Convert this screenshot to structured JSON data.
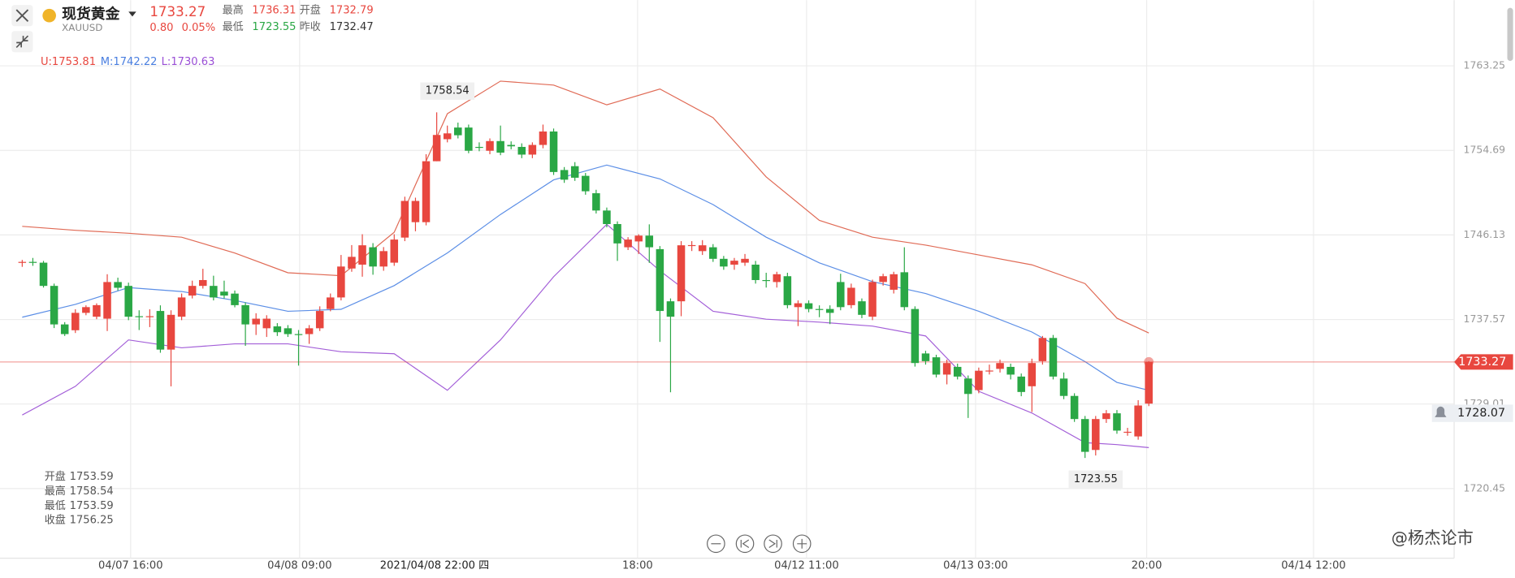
{
  "header": {
    "name": "现货黄金",
    "symbol": "XAUUSD",
    "price": 1733.27,
    "change": "0.80",
    "change_pct": "0.05%",
    "stats": [
      {
        "label": "最高",
        "value": 1736.31
      },
      {
        "label": "开盘",
        "value": 1732.79
      },
      {
        "label": "最低",
        "value": 1723.55
      },
      {
        "label": "昨收",
        "value": 1732.47
      }
    ]
  },
  "legend": [
    "U:1753.81",
    "M:1742.22",
    "L:1730.63"
  ],
  "info": [
    {
      "label": "开盘",
      "value": 1753.59
    },
    {
      "label": "最高",
      "value": 1758.54
    },
    {
      "label": "最低",
      "value": 1753.59
    },
    {
      "label": "收盘",
      "value": 1756.25
    }
  ],
  "watermark": "@杨杰论市",
  "chart_data": {
    "type": "candlestick",
    "up_color": "#e8473f",
    "down_color": "#2aa745",
    "ylim": [
      1713.4,
      1769.9
    ],
    "yticks": [
      1720.45,
      1729.01,
      1737.57,
      1746.13,
      1754.69,
      1763.25
    ],
    "xticks": [
      {
        "value": 10.2,
        "label": "04/07 16:00"
      },
      {
        "value": 26.1,
        "label": "04/08 09:00"
      },
      {
        "value": 57.9,
        "label": "18:00"
      },
      {
        "value": 73.8,
        "label": "04/12 11:00"
      },
      {
        "value": 89.7,
        "label": "04/13 03:00"
      },
      {
        "value": 105.8,
        "label": "20:00"
      },
      {
        "value": 121.5,
        "label": "04/14 12:00"
      }
    ],
    "crosshair": {
      "value": 38.8,
      "label": "2021/04/08 22:00 四"
    },
    "current_price": {
      "value": 1733.27,
      "color": "#e8473f"
    },
    "alert_price": 1728.07,
    "high_label": {
      "index": 40,
      "value": 1758.54
    },
    "low_label": {
      "index": 101,
      "value": 1723.55
    },
    "ohlc": [
      [
        1743.3,
        1743.6,
        1742.9,
        1743.4
      ],
      [
        1743.4,
        1743.8,
        1743.0,
        1743.3
      ],
      [
        1743.32,
        1743.5,
        1740.8,
        1740.97
      ],
      [
        1740.97,
        1741.2,
        1736.7,
        1737.07
      ],
      [
        1737.07,
        1737.3,
        1735.9,
        1736.09
      ],
      [
        1736.48,
        1738.6,
        1736.2,
        1738.24
      ],
      [
        1738.24,
        1739.0,
        1738.0,
        1738.82
      ],
      [
        1737.85,
        1739.2,
        1737.6,
        1739.02
      ],
      [
        1737.65,
        1742.15,
        1736.4,
        1741.36
      ],
      [
        1741.36,
        1741.8,
        1740.5,
        1740.78
      ],
      [
        1740.97,
        1741.3,
        1737.5,
        1737.85
      ],
      [
        1737.9,
        1738.5,
        1736.5,
        1737.85
      ],
      [
        1737.85,
        1738.6,
        1736.8,
        1737.9
      ],
      [
        1738.43,
        1739.0,
        1734.2,
        1734.52
      ],
      [
        1734.52,
        1738.5,
        1730.8,
        1738.04
      ],
      [
        1737.85,
        1740.2,
        1737.5,
        1739.8
      ],
      [
        1739.99,
        1741.5,
        1739.7,
        1740.97
      ],
      [
        1740.97,
        1742.7,
        1740.7,
        1741.56
      ],
      [
        1740.97,
        1742.0,
        1739.5,
        1739.8
      ],
      [
        1740.39,
        1741.5,
        1739.7,
        1739.99
      ],
      [
        1740.19,
        1740.5,
        1738.8,
        1739.02
      ],
      [
        1739.02,
        1739.3,
        1734.9,
        1737.07
      ],
      [
        1737.07,
        1738.2,
        1736.0,
        1737.65
      ],
      [
        1736.68,
        1738.0,
        1735.8,
        1737.65
      ],
      [
        1736.87,
        1737.2,
        1735.9,
        1736.28
      ],
      [
        1736.68,
        1737.0,
        1735.8,
        1736.09
      ],
      [
        1736.09,
        1736.5,
        1732.9,
        1736.0
      ],
      [
        1736.09,
        1737.0,
        1735.1,
        1736.68
      ],
      [
        1736.68,
        1738.9,
        1736.4,
        1738.43
      ],
      [
        1738.63,
        1740.2,
        1738.4,
        1739.8
      ],
      [
        1739.8,
        1744.1,
        1739.5,
        1742.93
      ],
      [
        1742.73,
        1745.1,
        1742.4,
        1743.91
      ],
      [
        1743.12,
        1746.2,
        1741.9,
        1745.08
      ],
      [
        1744.88,
        1745.3,
        1742.1,
        1742.93
      ],
      [
        1742.93,
        1744.9,
        1742.5,
        1744.49
      ],
      [
        1743.32,
        1746.2,
        1743.0,
        1745.66
      ],
      [
        1745.86,
        1750.0,
        1745.5,
        1749.57
      ],
      [
        1747.42,
        1749.9,
        1746.5,
        1749.57
      ],
      [
        1747.42,
        1754.3,
        1747.1,
        1753.59
      ],
      [
        1753.59,
        1758.54,
        1753.59,
        1756.25
      ],
      [
        1755.82,
        1757.2,
        1755.5,
        1756.41
      ],
      [
        1757.0,
        1757.5,
        1755.9,
        1756.22
      ],
      [
        1757.0,
        1757.3,
        1754.4,
        1754.65
      ],
      [
        1755.04,
        1755.5,
        1754.6,
        1755.0
      ],
      [
        1754.65,
        1755.9,
        1754.3,
        1755.63
      ],
      [
        1755.63,
        1757.2,
        1754.2,
        1754.46
      ],
      [
        1755.24,
        1755.6,
        1754.8,
        1755.1
      ],
      [
        1755.04,
        1755.4,
        1753.9,
        1754.26
      ],
      [
        1754.26,
        1755.5,
        1753.9,
        1755.24
      ],
      [
        1755.24,
        1757.3,
        1754.9,
        1756.6
      ],
      [
        1756.6,
        1756.9,
        1752.2,
        1752.5
      ],
      [
        1752.7,
        1753.0,
        1751.4,
        1751.72
      ],
      [
        1753.09,
        1753.5,
        1751.6,
        1751.92
      ],
      [
        1752.11,
        1752.4,
        1750.2,
        1750.55
      ],
      [
        1750.35,
        1750.7,
        1748.3,
        1748.6
      ],
      [
        1748.6,
        1748.9,
        1746.9,
        1747.23
      ],
      [
        1747.23,
        1747.5,
        1743.5,
        1745.27
      ],
      [
        1744.88,
        1745.9,
        1744.6,
        1745.66
      ],
      [
        1745.47,
        1746.2,
        1744.2,
        1746.06
      ],
      [
        1746.06,
        1747.2,
        1743.3,
        1744.88
      ],
      [
        1744.69,
        1745.0,
        1735.3,
        1738.43
      ],
      [
        1739.41,
        1739.7,
        1730.2,
        1737.85
      ],
      [
        1739.41,
        1745.5,
        1737.9,
        1745.08
      ],
      [
        1745.08,
        1745.5,
        1744.5,
        1745.1
      ],
      [
        1744.49,
        1745.6,
        1744.1,
        1745.08
      ],
      [
        1744.88,
        1745.2,
        1743.4,
        1743.71
      ],
      [
        1743.71,
        1744.0,
        1742.6,
        1742.93
      ],
      [
        1743.12,
        1743.8,
        1742.6,
        1743.52
      ],
      [
        1743.32,
        1744.2,
        1743.0,
        1743.71
      ],
      [
        1743.12,
        1743.5,
        1741.2,
        1741.56
      ],
      [
        1741.56,
        1742.3,
        1740.8,
        1741.5
      ],
      [
        1741.36,
        1742.4,
        1740.8,
        1742.15
      ],
      [
        1741.95,
        1742.3,
        1738.7,
        1739.02
      ],
      [
        1738.82,
        1739.5,
        1736.9,
        1739.21
      ],
      [
        1739.21,
        1739.5,
        1738.3,
        1738.63
      ],
      [
        1738.63,
        1739.0,
        1737.8,
        1738.6
      ],
      [
        1738.63,
        1739.0,
        1737.1,
        1738.24
      ],
      [
        1741.36,
        1742.2,
        1738.5,
        1738.82
      ],
      [
        1739.02,
        1741.2,
        1738.7,
        1740.78
      ],
      [
        1739.41,
        1739.7,
        1737.7,
        1738.04
      ],
      [
        1737.85,
        1741.6,
        1737.5,
        1741.36
      ],
      [
        1741.36,
        1742.2,
        1741.0,
        1741.95
      ],
      [
        1740.58,
        1742.4,
        1740.2,
        1742.15
      ],
      [
        1742.35,
        1744.88,
        1738.5,
        1738.82
      ],
      [
        1738.63,
        1738.9,
        1732.8,
        1733.16
      ],
      [
        1734.13,
        1734.4,
        1733.0,
        1733.35
      ],
      [
        1733.74,
        1734.0,
        1731.7,
        1731.99
      ],
      [
        1731.99,
        1733.5,
        1731.0,
        1733.16
      ],
      [
        1732.77,
        1733.1,
        1731.5,
        1731.79
      ],
      [
        1731.59,
        1731.9,
        1727.6,
        1730.03
      ],
      [
        1730.42,
        1732.7,
        1730.1,
        1732.38
      ],
      [
        1732.38,
        1733.0,
        1732.0,
        1732.4
      ],
      [
        1732.57,
        1733.5,
        1732.2,
        1733.16
      ],
      [
        1732.77,
        1733.1,
        1731.5,
        1731.99
      ],
      [
        1731.79,
        1732.1,
        1729.8,
        1730.23
      ],
      [
        1730.81,
        1733.6,
        1728.2,
        1733.16
      ],
      [
        1733.35,
        1735.9,
        1733.0,
        1735.7
      ],
      [
        1735.7,
        1736.0,
        1731.5,
        1731.79
      ],
      [
        1731.59,
        1732.2,
        1729.5,
        1729.83
      ],
      [
        1729.83,
        1730.1,
        1727.2,
        1727.49
      ],
      [
        1727.49,
        1727.8,
        1723.55,
        1724.17
      ],
      [
        1724.36,
        1727.8,
        1723.8,
        1727.49
      ],
      [
        1727.49,
        1728.4,
        1727.1,
        1728.07
      ],
      [
        1728.07,
        1728.4,
        1726.0,
        1726.32
      ],
      [
        1726.12,
        1726.6,
        1725.8,
        1726.2
      ],
      [
        1725.73,
        1729.4,
        1725.4,
        1728.86
      ],
      [
        1729.05,
        1733.35,
        1728.8,
        1733.27
      ]
    ],
    "band_x": [
      0,
      5,
      10,
      15,
      20,
      25,
      30,
      35,
      40,
      45,
      50,
      55,
      60,
      65,
      70,
      75,
      80,
      85,
      90,
      95,
      100,
      103,
      106
    ],
    "bands": [
      {
        "color": "#e06a55",
        "values": [
          1747.0,
          1746.6,
          1746.3,
          1745.9,
          1744.3,
          1742.3,
          1742.0,
          1746.4,
          1758.4,
          1761.7,
          1761.3,
          1759.3,
          1760.9,
          1758.0,
          1752.0,
          1747.6,
          1745.9,
          1745.1,
          1744.1,
          1743.1,
          1741.2,
          1737.7,
          1736.2
        ]
      },
      {
        "color": "#5b8ee6",
        "values": [
          1737.8,
          1739.1,
          1740.8,
          1740.4,
          1739.5,
          1738.4,
          1738.6,
          1741.0,
          1744.3,
          1748.2,
          1751.7,
          1753.2,
          1751.8,
          1749.2,
          1745.9,
          1743.3,
          1741.4,
          1740.2,
          1738.4,
          1736.3,
          1733.3,
          1731.2,
          1730.4
        ]
      },
      {
        "color": "#a35fd8",
        "values": [
          1727.9,
          1730.8,
          1735.5,
          1734.7,
          1735.1,
          1735.1,
          1734.3,
          1734.1,
          1730.4,
          1735.5,
          1741.9,
          1747.2,
          1742.5,
          1738.4,
          1737.6,
          1737.3,
          1736.9,
          1735.9,
          1730.3,
          1728.1,
          1725.1,
          1724.9,
          1724.6
        ]
      }
    ]
  }
}
